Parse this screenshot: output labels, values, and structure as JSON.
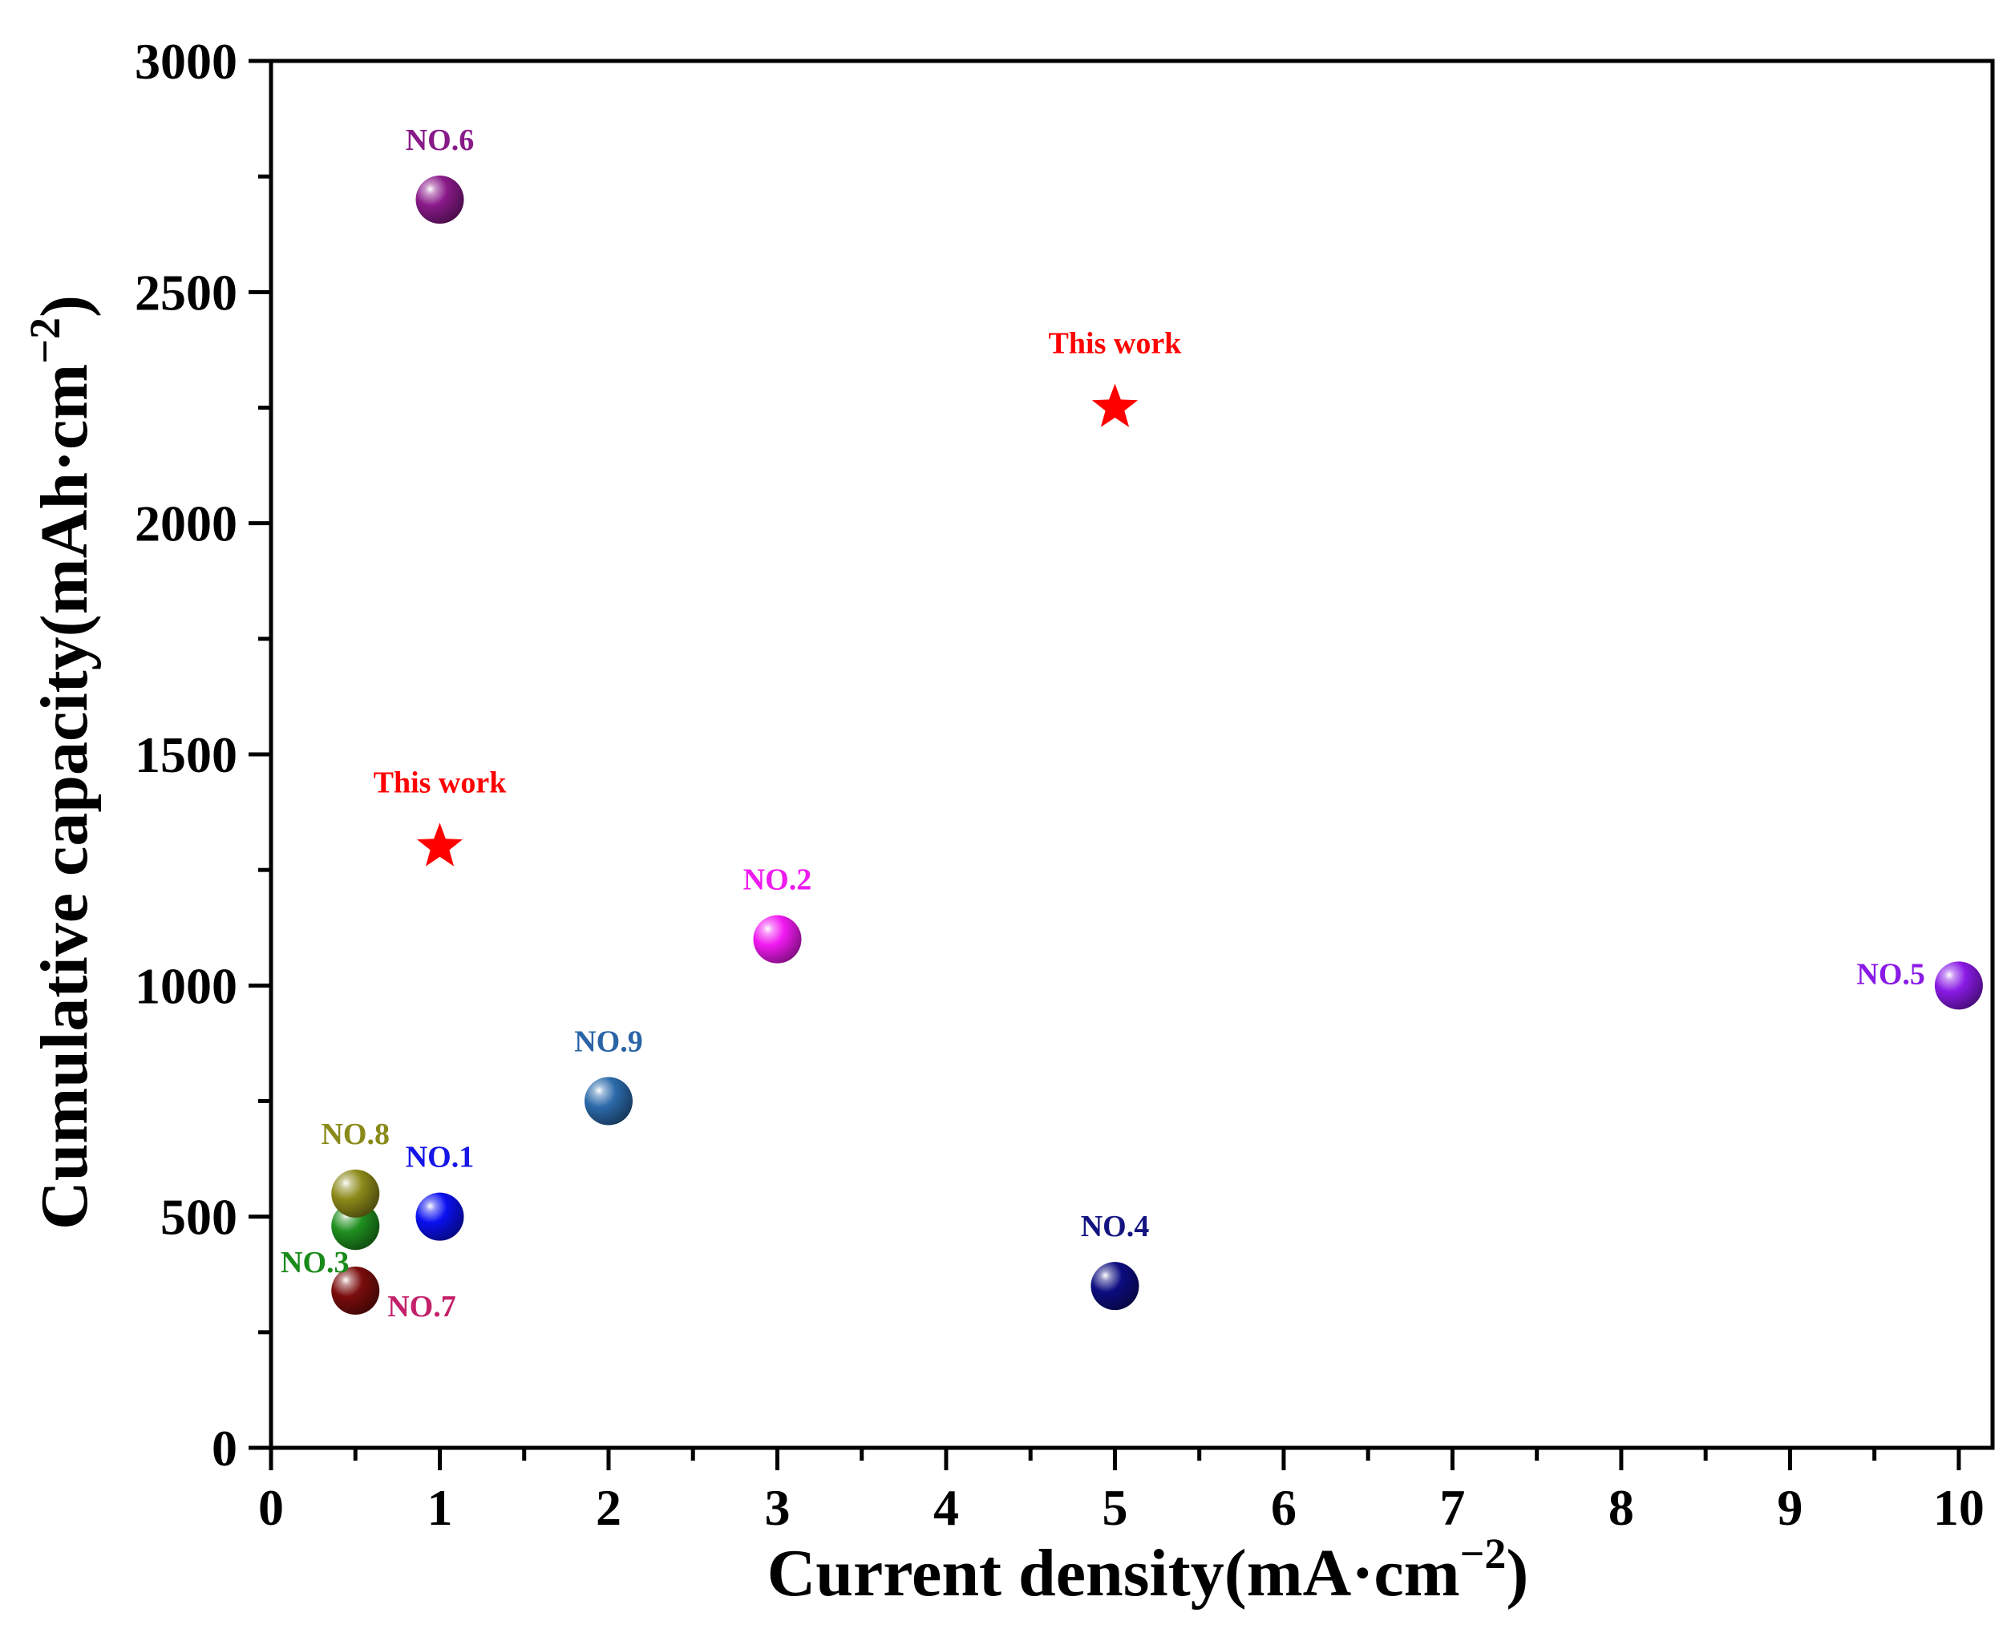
{
  "chart_data": {
    "type": "scatter",
    "title": "",
    "xlabel": {
      "main": "Current density(mA·cm",
      "sup": "−2",
      "close": ")"
    },
    "ylabel": {
      "main": "Cumulative capacity(mAh·cm",
      "sup": "−2",
      "close": ")"
    },
    "xlim": [
      0,
      10.2
    ],
    "ylim": [
      0,
      3000
    ],
    "xticks": [
      0,
      1,
      2,
      3,
      4,
      5,
      6,
      7,
      8,
      9,
      10
    ],
    "xtick_labels": [
      "0",
      "1",
      "2",
      "3",
      "4",
      "5",
      "6",
      "7",
      "8",
      "9",
      "10"
    ],
    "yticks": [
      0,
      500,
      1000,
      1500,
      2000,
      2500,
      3000
    ],
    "ytick_labels": [
      "0",
      "500",
      "1000",
      "1500",
      "2000",
      "2500",
      "3000"
    ],
    "grid": false,
    "legend": "none",
    "points": [
      {
        "label": "NO.1",
        "x": 1.0,
        "y": 500,
        "marker": "sphere",
        "color": "#0a10f0",
        "label_color": "#1515e8",
        "label_pos": "above"
      },
      {
        "label": "NO.2",
        "x": 3.0,
        "y": 1100,
        "marker": "sphere",
        "color": "#f21af2",
        "label_color": "#ee1cee",
        "label_pos": "above"
      },
      {
        "label": "NO.3",
        "x": 0.5,
        "y": 480,
        "marker": "sphere",
        "color": "#1f8f1f",
        "label_color": "#1a8a1a",
        "label_pos": "below-left"
      },
      {
        "label": "NO.4",
        "x": 5.0,
        "y": 350,
        "marker": "sphere",
        "color": "#0c0c80",
        "label_color": "#141480",
        "label_pos": "above"
      },
      {
        "label": "NO.5",
        "x": 10.0,
        "y": 1000,
        "marker": "sphere",
        "color": "#8a1ae6",
        "label_color": "#8a1ae6",
        "label_pos": "left"
      },
      {
        "label": "NO.6",
        "x": 1.0,
        "y": 2700,
        "marker": "sphere",
        "color": "#8a1a8a",
        "label_color": "#881a88",
        "label_pos": "above"
      },
      {
        "label": "NO.7",
        "x": 0.5,
        "y": 340,
        "marker": "sphere",
        "color": "#7a0c0c",
        "label_color": "#c4206a",
        "label_pos": "below-right"
      },
      {
        "label": "NO.8",
        "x": 0.5,
        "y": 550,
        "marker": "sphere",
        "color": "#8c8a1a",
        "label_color": "#8a8a1a",
        "label_pos": "above"
      },
      {
        "label": "NO.9",
        "x": 2.0,
        "y": 750,
        "marker": "sphere",
        "color": "#2c6aaa",
        "label_color": "#2a64a6",
        "label_pos": "above"
      },
      {
        "label": "This work",
        "x": 1.0,
        "y": 1300,
        "marker": "star",
        "color": "#ff0000",
        "label_color": "#ff0000",
        "label_pos": "above"
      },
      {
        "label": "This work",
        "x": 5.0,
        "y": 2250,
        "marker": "star",
        "color": "#ff0000",
        "label_color": "#ff0000",
        "label_pos": "above"
      }
    ]
  }
}
